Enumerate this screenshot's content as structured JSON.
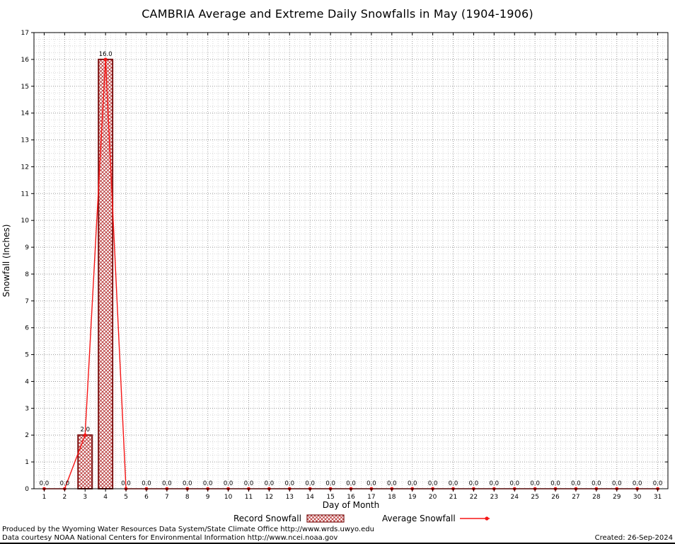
{
  "chart_data": {
    "type": "combo-bar-line",
    "title": "CAMBRIA Average and Extreme Daily Snowfalls in May (1904-1906)",
    "xlabel": "Day of Month",
    "ylabel": "Snowfall (Inches)",
    "ylim": [
      0,
      17
    ],
    "ytick_step": 1,
    "grid": true,
    "legend_position": "bottom",
    "x": [
      1,
      2,
      3,
      4,
      5,
      6,
      7,
      8,
      9,
      10,
      11,
      12,
      13,
      14,
      15,
      16,
      17,
      18,
      19,
      20,
      21,
      22,
      23,
      24,
      25,
      26,
      27,
      28,
      29,
      30,
      31
    ],
    "series": [
      {
        "name": "Record Snowfall",
        "type": "bar",
        "color": "#b43030",
        "edge": "#7d1414",
        "values": [
          0,
          0,
          2,
          16,
          0,
          0,
          0,
          0,
          0,
          0,
          0,
          0,
          0,
          0,
          0,
          0,
          0,
          0,
          0,
          0,
          0,
          0,
          0,
          0,
          0,
          0,
          0,
          0,
          0,
          0,
          0
        ]
      },
      {
        "name": "Average Snowfall",
        "type": "line",
        "color": "#f51515",
        "values": [
          0,
          0,
          2,
          16,
          0,
          0,
          0,
          0,
          0,
          0,
          0,
          0,
          0,
          0,
          0,
          0,
          0,
          0,
          0,
          0,
          0,
          0,
          0,
          0,
          0,
          0,
          0,
          0,
          0,
          0,
          0
        ]
      }
    ],
    "labels": [
      "0.0",
      "0.0",
      "2.0",
      "16.0",
      "0.0",
      "0.0",
      "0.0",
      "0.0",
      "0.0",
      "0.0",
      "0.0",
      "0.0",
      "0.0",
      "0.0",
      "0.0",
      "0.0",
      "0.0",
      "0.0",
      "0.0",
      "0.0",
      "0.0",
      "0.0",
      "0.0",
      "0.0",
      "0.0",
      "0.0",
      "0.0",
      "0.0",
      "0.0",
      "0.0",
      "0.0"
    ]
  },
  "footer": {
    "line1": "Produced by the Wyoming Water Resources Data System/State Climate Office http://www.wrds.uwyo.edu",
    "line2": "Data courtesy NOAA National Centers for Environmental Information http://www.ncei.noaa.gov",
    "created": "Created: 26-Sep-2024"
  }
}
